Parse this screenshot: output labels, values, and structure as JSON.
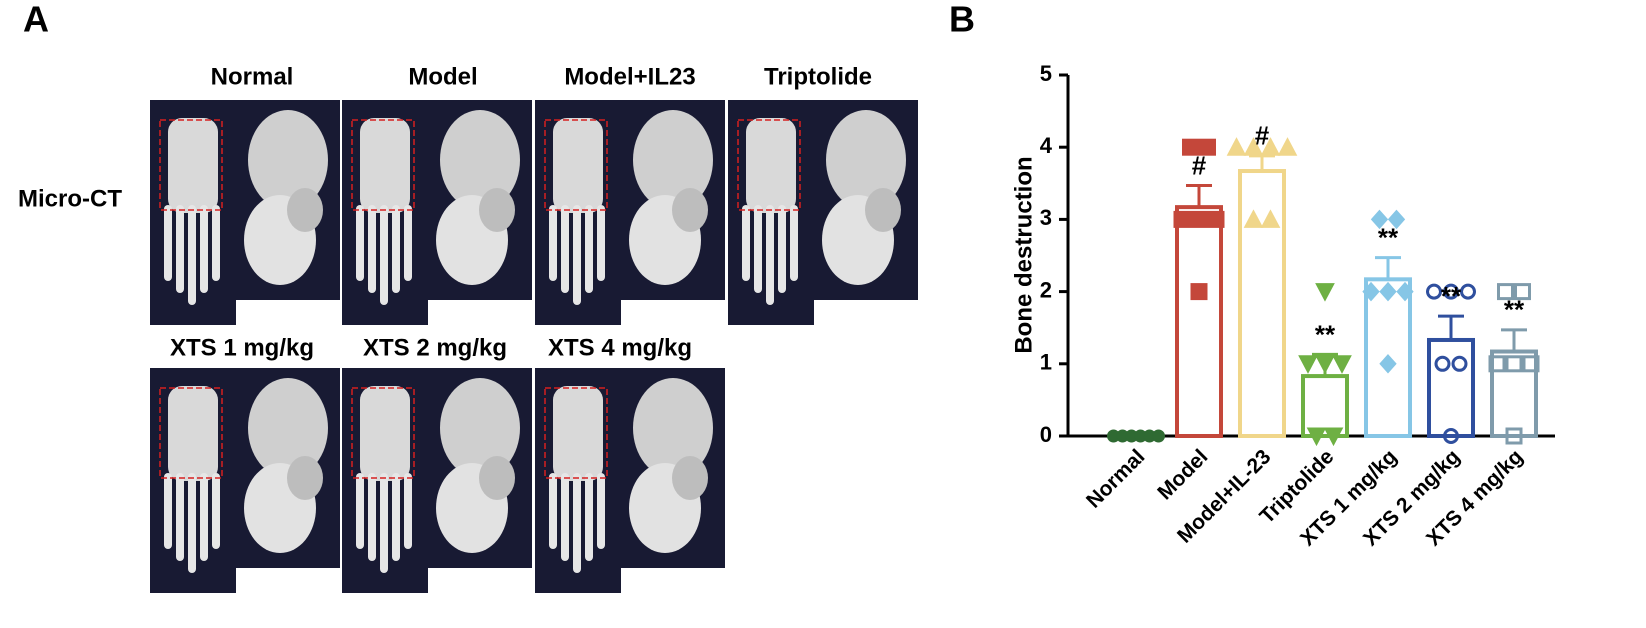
{
  "panel_a": {
    "label": "A",
    "row_label": "Micro-CT",
    "columns": [
      "Normal",
      "Model",
      "Model+IL23",
      "Triptolide",
      "XTS 1 mg/kg",
      "XTS 2 mg/kg",
      "XTS 4 mg/kg"
    ]
  },
  "chart_data": {
    "type": "bar",
    "panel_label": "B",
    "y_label": "Bone destruction",
    "categories": [
      "Normal",
      "Model",
      "Model+IL-23",
      "Triptolide",
      "XTS 1 mg/kg",
      "XTS 2 mg/kg",
      "XTS 4 mg/kg"
    ],
    "values": [
      0,
      3.17,
      3.67,
      0.83,
      2.17,
      1.33,
      1.17
    ],
    "errors": [
      0,
      0.3,
      0.21,
      0.3,
      0.3,
      0.33,
      0.3
    ],
    "points": [
      [
        0,
        0,
        0,
        0,
        0,
        0
      ],
      [
        4,
        4,
        3,
        3,
        3,
        2
      ],
      [
        4,
        4,
        4,
        4,
        3,
        3
      ],
      [
        2,
        1,
        1,
        1,
        0,
        0
      ],
      [
        3,
        3,
        2,
        2,
        2,
        1
      ],
      [
        2,
        2,
        2,
        1,
        1,
        0
      ],
      [
        2,
        2,
        1,
        1,
        1,
        0
      ]
    ],
    "annotations": [
      null,
      "#",
      "#",
      "**",
      "**",
      "**",
      "**"
    ],
    "colors": [
      "#2f6a32",
      "#c4473a",
      "#f0d68a",
      "#6eb043",
      "#86c6e6",
      "#2f4f9e",
      "#7f9bab"
    ],
    "markers": [
      "circle",
      "square",
      "triangle-up",
      "triangle-down",
      "diamond",
      "circle-open",
      "square-open"
    ],
    "ylim": [
      0,
      5
    ],
    "yticks": [
      0,
      1,
      2,
      3,
      4,
      5
    ]
  }
}
